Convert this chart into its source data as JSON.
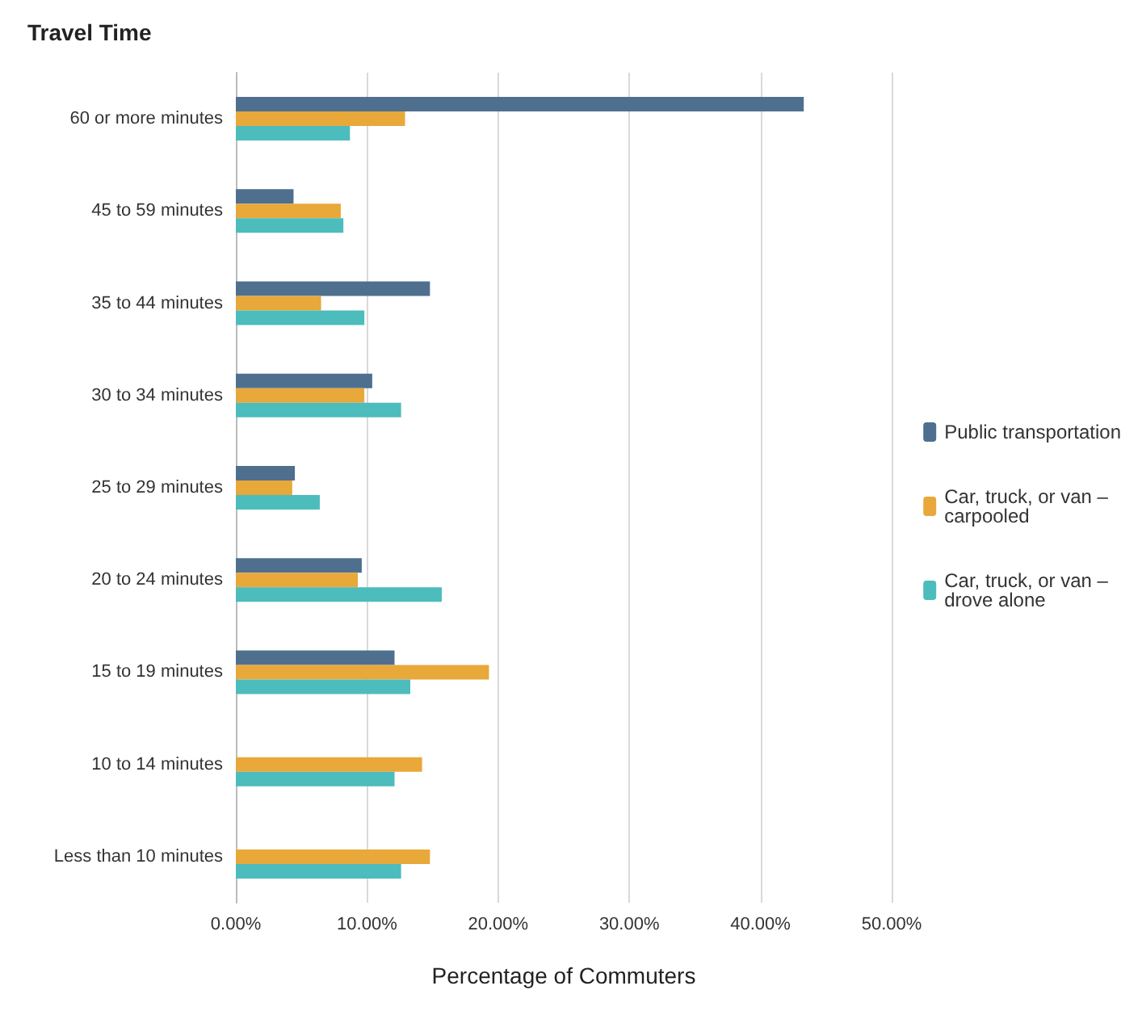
{
  "chart_data": {
    "type": "bar",
    "orientation": "horizontal",
    "title": "Travel Time",
    "xlabel": "Percentage of Commuters",
    "categories": [
      "60 or more minutes",
      "45 to 59 minutes",
      "35 to 44 minutes",
      "30 to 34 minutes",
      "25 to 29 minutes",
      "20 to 24 minutes",
      "15 to 19 minutes",
      "10 to 14 minutes",
      "Less than 10 minutes"
    ],
    "series": [
      {
        "name": "Public transportation",
        "color": "#4f6f8f",
        "values": [
          43.3,
          4.4,
          14.8,
          10.4,
          4.5,
          9.6,
          12.1,
          0,
          0
        ]
      },
      {
        "name": "Car, truck, or van – carpooled",
        "color": "#e8a83a",
        "values": [
          12.9,
          8.0,
          6.5,
          9.8,
          4.3,
          9.3,
          19.3,
          14.2,
          14.8
        ]
      },
      {
        "name": "Car, truck, or van – drove alone",
        "color": "#4cbcbc",
        "values": [
          8.7,
          8.2,
          9.8,
          12.6,
          6.4,
          15.7,
          13.3,
          12.1,
          12.6
        ]
      }
    ],
    "xlim": [
      0,
      50
    ],
    "xticks": [
      {
        "value": 0,
        "label": "0.00%"
      },
      {
        "value": 10,
        "label": "10.00%"
      },
      {
        "value": 20,
        "label": "20.00%"
      },
      {
        "value": 30,
        "label": "30.00%"
      },
      {
        "value": 40,
        "label": "40.00%"
      },
      {
        "value": 50,
        "label": "50.00%"
      }
    ],
    "grid": "x",
    "legend": "right"
  }
}
